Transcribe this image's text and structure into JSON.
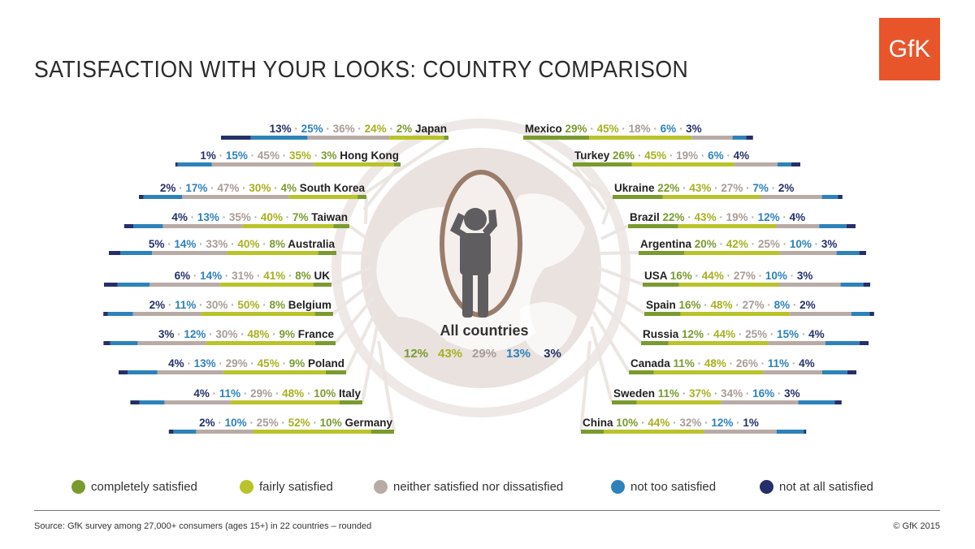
{
  "title": "SATISFACTION WITH YOUR LOOKS: COUNTRY COMPARISON",
  "logo_text": "GfK",
  "categories": [
    "completely satisfied",
    "fairly satisfied",
    "neither satisfied nor dissatisfied",
    "not too satisfied",
    "not at all satisfied"
  ],
  "colors": [
    "#7a9a2e",
    "#b9c32a",
    "#b8aba6",
    "#2d82ba",
    "#25306a"
  ],
  "all_countries": {
    "label": "All countries",
    "values": [
      "12%",
      "43%",
      "29%",
      "13%",
      "3%"
    ]
  },
  "source": "Source: GfK survey among 27,000+ consumers (ages 15+) in 22 countries – rounded",
  "copyright": "© GfK 2015",
  "chart_data": {
    "type": "bar",
    "series_names": [
      "completely satisfied",
      "fairly satisfied",
      "neither satisfied nor dissatisfied",
      "not too satisfied",
      "not at all satisfied"
    ],
    "left": [
      {
        "country": "Japan",
        "values": [
          2,
          24,
          36,
          25,
          13
        ]
      },
      {
        "country": "Hong Kong",
        "values": [
          3,
          35,
          45,
          15,
          1
        ]
      },
      {
        "country": "South Korea",
        "values": [
          4,
          30,
          47,
          17,
          2
        ]
      },
      {
        "country": "Taiwan",
        "values": [
          7,
          40,
          35,
          13,
          4
        ]
      },
      {
        "country": "Australia",
        "values": [
          8,
          40,
          33,
          14,
          5
        ]
      },
      {
        "country": "UK",
        "values": [
          8,
          41,
          31,
          14,
          6
        ]
      },
      {
        "country": "Belgium",
        "values": [
          8,
          50,
          30,
          11,
          2
        ]
      },
      {
        "country": "France",
        "values": [
          9,
          48,
          30,
          12,
          3
        ]
      },
      {
        "country": "Poland",
        "values": [
          9,
          45,
          29,
          13,
          4
        ]
      },
      {
        "country": "Italy",
        "values": [
          10,
          48,
          29,
          11,
          4
        ]
      },
      {
        "country": "Germany",
        "values": [
          10,
          52,
          25,
          10,
          2
        ]
      }
    ],
    "right": [
      {
        "country": "Mexico",
        "values": [
          29,
          45,
          18,
          6,
          3
        ]
      },
      {
        "country": "Turkey",
        "values": [
          26,
          45,
          19,
          6,
          4
        ]
      },
      {
        "country": "Ukraine",
        "values": [
          22,
          43,
          27,
          7,
          2
        ]
      },
      {
        "country": "Brazil",
        "values": [
          22,
          43,
          19,
          12,
          4
        ]
      },
      {
        "country": "Argentina",
        "values": [
          20,
          42,
          25,
          10,
          3
        ]
      },
      {
        "country": "USA",
        "values": [
          16,
          44,
          27,
          10,
          3
        ]
      },
      {
        "country": "Spain",
        "values": [
          16,
          48,
          27,
          8,
          2
        ]
      },
      {
        "country": "Russia",
        "values": [
          12,
          44,
          25,
          15,
          4
        ]
      },
      {
        "country": "Canada",
        "values": [
          11,
          48,
          26,
          11,
          4
        ]
      },
      {
        "country": "Sweden",
        "values": [
          11,
          37,
          34,
          16,
          3
        ]
      },
      {
        "country": "China",
        "values": [
          10,
          44,
          32,
          12,
          1
        ]
      }
    ],
    "all_countries": [
      12,
      43,
      29,
      13,
      3
    ]
  }
}
